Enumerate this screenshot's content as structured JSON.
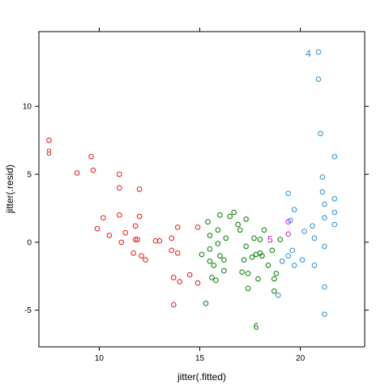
{
  "chart_data": {
    "type": "scatter",
    "title": "",
    "xlabel": "jitter(.fitted)",
    "ylabel": "jitter(.resid)",
    "xlim": [
      7.0,
      23.2
    ],
    "ylim": [
      -7.7,
      15.5
    ],
    "xticks": [
      {
        "value": 10,
        "label": "10"
      },
      {
        "value": 15,
        "label": "15"
      },
      {
        "value": 20,
        "label": "20"
      }
    ],
    "yticks": [
      {
        "value": -5,
        "label": "-5"
      },
      {
        "value": 0,
        "label": "0"
      },
      {
        "value": 5,
        "label": "5"
      },
      {
        "value": 10,
        "label": "10"
      }
    ],
    "grid": false,
    "legend": "none",
    "series": [
      {
        "color": "#e41a1c",
        "points": [
          [
            7.5,
            7.5
          ],
          [
            8.9,
            5.1
          ],
          [
            9.6,
            6.3
          ],
          [
            9.7,
            5.3
          ],
          [
            9.9,
            1.0
          ],
          [
            10.2,
            1.8
          ],
          [
            10.5,
            0.5
          ],
          [
            11.0,
            5.0
          ],
          [
            11.0,
            4.0
          ],
          [
            11.0,
            2.0
          ],
          [
            11.1,
            0.0
          ],
          [
            11.3,
            0.7
          ],
          [
            11.7,
            -0.8
          ],
          [
            11.8,
            1.2
          ],
          [
            11.8,
            0.2
          ],
          [
            11.9,
            0.2
          ],
          [
            12.0,
            1.9
          ],
          [
            12.0,
            3.9
          ],
          [
            12.1,
            -1.0
          ],
          [
            12.3,
            -1.3
          ],
          [
            12.8,
            0.1
          ],
          [
            13.0,
            0.1
          ],
          [
            13.6,
            0.3
          ],
          [
            13.6,
            -0.6
          ],
          [
            13.7,
            -2.6
          ],
          [
            13.7,
            -4.6
          ],
          [
            13.9,
            1.1
          ],
          [
            13.9,
            -0.8
          ],
          [
            14.0,
            -2.9
          ],
          [
            14.5,
            -2.4
          ],
          [
            14.9,
            -3.0
          ],
          [
            14.9,
            1.1
          ]
        ]
      },
      {
        "color": "#007d00",
        "points": [
          [
            15.1,
            -0.9
          ],
          [
            15.3,
            -4.5
          ],
          [
            15.4,
            1.5
          ],
          [
            15.5,
            0.5
          ],
          [
            15.5,
            -0.5
          ],
          [
            15.5,
            -1.4
          ],
          [
            15.6,
            -2.6
          ],
          [
            15.7,
            -1.7
          ],
          [
            15.8,
            -2.8
          ],
          [
            15.9,
            0.9
          ],
          [
            15.9,
            -0.1
          ],
          [
            16.0,
            2.0
          ],
          [
            16.0,
            -1.0
          ],
          [
            16.2,
            -2.1
          ],
          [
            16.2,
            -1.3
          ],
          [
            16.3,
            0.3
          ],
          [
            16.5,
            1.9
          ],
          [
            16.7,
            2.2
          ],
          [
            16.9,
            1.3
          ],
          [
            17.0,
            0.9
          ],
          [
            17.1,
            -2.2
          ],
          [
            17.2,
            -1.3
          ],
          [
            17.3,
            1.7
          ],
          [
            17.3,
            -0.3
          ],
          [
            17.4,
            -2.3
          ],
          [
            17.4,
            -3.4
          ],
          [
            17.6,
            -1.1
          ],
          [
            17.7,
            0.3
          ],
          [
            17.8,
            -0.9
          ],
          [
            17.9,
            -2.7
          ],
          [
            18.0,
            0.2
          ],
          [
            18.0,
            -0.8
          ],
          [
            18.1,
            -1.0
          ],
          [
            18.2,
            0.9
          ],
          [
            18.4,
            -1.7
          ],
          [
            18.6,
            -0.6
          ],
          [
            18.7,
            -2.7
          ],
          [
            18.7,
            -3.6
          ],
          [
            18.8,
            -2.3
          ],
          [
            19.0,
            0.2
          ]
        ]
      },
      {
        "color": "#2a8fd8",
        "points": [
          [
            18.9,
            -3.9
          ],
          [
            19.1,
            -1.4
          ],
          [
            19.4,
            3.6
          ],
          [
            19.4,
            -1.0
          ],
          [
            19.5,
            1.6
          ],
          [
            19.6,
            -0.6
          ],
          [
            19.7,
            2.4
          ],
          [
            19.7,
            -1.7
          ],
          [
            20.1,
            -1.3
          ],
          [
            20.2,
            0.8
          ],
          [
            20.6,
            1.2
          ],
          [
            20.7,
            0.3
          ],
          [
            20.7,
            -1.7
          ],
          [
            20.9,
            14.0
          ],
          [
            20.9,
            12.0
          ],
          [
            21.0,
            8.0
          ],
          [
            21.1,
            4.8
          ],
          [
            21.1,
            3.7
          ],
          [
            21.2,
            2.8
          ],
          [
            21.2,
            1.8
          ],
          [
            21.2,
            -0.3
          ],
          [
            21.2,
            -3.3
          ],
          [
            21.2,
            -5.3
          ],
          [
            21.7,
            6.3
          ],
          [
            21.7,
            3.2
          ],
          [
            21.7,
            2.2
          ],
          [
            21.7,
            1.3
          ]
        ]
      },
      {
        "color": "#cc22cc",
        "points": [
          [
            19.4,
            1.5
          ],
          [
            19.4,
            0.6
          ]
        ]
      }
    ],
    "annotations": [
      {
        "text": "8",
        "x": 7.5,
        "y": 6.6,
        "color": "#e41a1c"
      },
      {
        "text": "4",
        "x": 20.4,
        "y": 13.9,
        "color": "#2a8fd8"
      },
      {
        "text": "5",
        "x": 18.5,
        "y": 0.2,
        "color": "#cc22cc"
      },
      {
        "text": "6",
        "x": 17.8,
        "y": -6.2,
        "color": "#007d00"
      }
    ]
  }
}
